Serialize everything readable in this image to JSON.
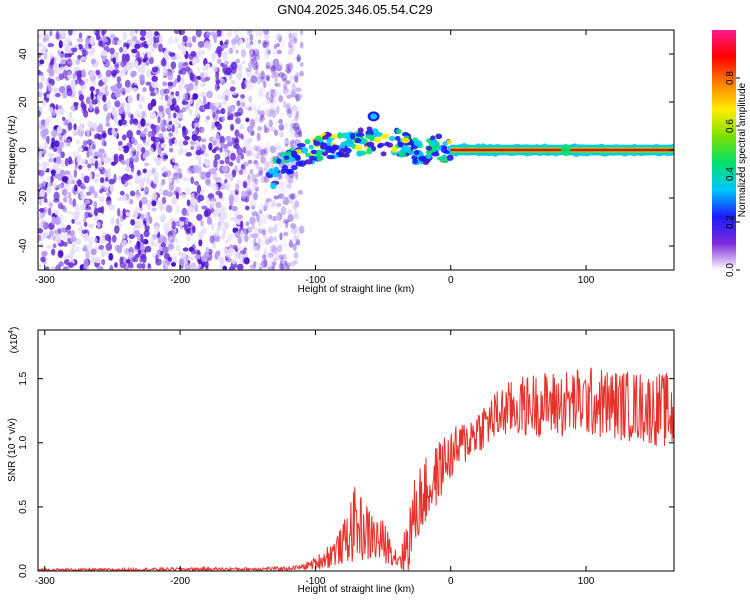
{
  "title": "GN04.2025.346.05.54.C29",
  "colors": {
    "line": "#e8302b",
    "axis": "#000000",
    "scatter_light": "#e6dcfb",
    "scatter_mid": "#b79af2",
    "scatter_dark": "#6a2bd9",
    "scatter_deep": "#4b13c8"
  },
  "chart_data": [
    {
      "type": "heatmap",
      "title": "GN04.2025.346.05.54.C29",
      "xlabel": "Height of straight line (km)",
      "ylabel": "Frequency (Hz)",
      "xlim": [
        -305,
        165
      ],
      "ylim": [
        -50,
        50
      ],
      "x_ticks": [
        -300,
        -200,
        -100,
        0,
        100
      ],
      "x_tick_labels": [
        "-300",
        "-200",
        "-100",
        "0",
        "100"
      ],
      "y_ticks": [
        -40,
        -20,
        0,
        20,
        40
      ],
      "y_tick_labels": [
        "-40",
        "-20",
        "0",
        "20",
        "40"
      ],
      "noise_region_x": [
        -305,
        -110
      ],
      "transition_region_x": [
        -135,
        -105
      ],
      "ridge": {
        "x": [
          -135,
          -120,
          -110,
          -100,
          -90,
          -80,
          -70,
          -60,
          -50,
          -40,
          -30,
          -20,
          -10,
          0,
          50,
          100,
          165
        ],
        "y": [
          -12,
          -5,
          -2,
          0,
          2,
          1,
          3,
          4,
          2,
          3,
          1,
          -2,
          1,
          0,
          0,
          0,
          0
        ]
      },
      "spots": [
        {
          "x": -57,
          "y": 14
        }
      ],
      "colorbar": {
        "label": "Normalized spectral amplitude",
        "range": [
          0,
          1
        ],
        "ticks": [
          0.0,
          0.2,
          0.4,
          0.6,
          0.8
        ],
        "tick_labels": [
          "0.0",
          "0.2",
          "0.4",
          "0.6",
          "0.8"
        ],
        "colors": [
          "#ffffff",
          "#7a2bd9",
          "#1a1aff",
          "#00c8ff",
          "#00e070",
          "#7ae000",
          "#ffee00",
          "#ff8000",
          "#ff0000",
          "#ff1a8c"
        ]
      }
    },
    {
      "type": "line",
      "xlabel": "Height of straight line (km)",
      "ylabel": "SNR (10 * v/v)",
      "scale_label": "(x10^4)",
      "scale_base": "(x10",
      "scale_exp": "4",
      "scale_close": ")",
      "xlim": [
        -305,
        165
      ],
      "ylim": [
        0,
        1.88
      ],
      "x_ticks": [
        -300,
        -200,
        -100,
        0,
        100
      ],
      "x_tick_labels": [
        "-300",
        "-200",
        "-100",
        "0",
        "100"
      ],
      "y_ticks": [
        0,
        0.5,
        1.0,
        1.5
      ],
      "y_tick_labels": [
        "0.0",
        "0.5",
        "1.0",
        "1.5"
      ],
      "series": [
        {
          "name": "SNR",
          "x": [
            -305,
            -250,
            -200,
            -150,
            -120,
            -110,
            -100,
            -90,
            -80,
            -75,
            -70,
            -65,
            -60,
            -55,
            -50,
            -45,
            -40,
            -35,
            -30,
            -25,
            -20,
            -15,
            -10,
            -5,
            0,
            10,
            20,
            30,
            40,
            60,
            80,
            100,
            120,
            140,
            160,
            165
          ],
          "values": [
            0.01,
            0.01,
            0.015,
            0.015,
            0.02,
            0.03,
            0.06,
            0.12,
            0.2,
            0.3,
            0.38,
            0.32,
            0.28,
            0.25,
            0.22,
            0.18,
            0.1,
            0.12,
            0.3,
            0.5,
            0.6,
            0.65,
            0.75,
            0.85,
            0.9,
            1.0,
            1.1,
            1.18,
            1.25,
            1.3,
            1.3,
            1.32,
            1.3,
            1.28,
            1.25,
            1.2
          ],
          "noise_amp": [
            0.01,
            0.01,
            0.012,
            0.012,
            0.015,
            0.02,
            0.05,
            0.1,
            0.15,
            0.25,
            0.3,
            0.25,
            0.22,
            0.2,
            0.18,
            0.12,
            0.08,
            0.15,
            0.3,
            0.3,
            0.28,
            0.25,
            0.25,
            0.22,
            0.2,
            0.18,
            0.18,
            0.2,
            0.22,
            0.25,
            0.27,
            0.28,
            0.28,
            0.28,
            0.3,
            0.3
          ]
        }
      ]
    }
  ]
}
